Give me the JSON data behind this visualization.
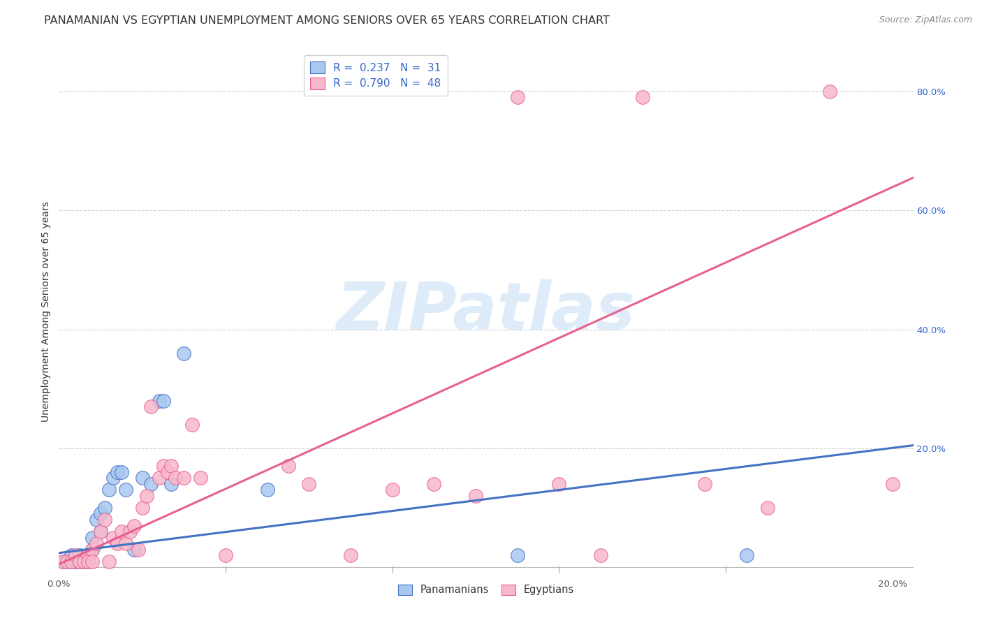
{
  "title": "PANAMANIAN VS EGYPTIAN UNEMPLOYMENT AMONG SENIORS OVER 65 YEARS CORRELATION CHART",
  "source": "Source: ZipAtlas.com",
  "ylabel": "Unemployment Among Seniors over 65 years",
  "xlim": [
    0.0,
    0.205
  ],
  "ylim": [
    -0.01,
    0.87
  ],
  "xtick_positions": [
    0.0,
    0.04,
    0.08,
    0.12,
    0.16,
    0.2
  ],
  "xtick_labels": [
    "0.0%",
    "",
    "",
    "",
    "",
    "20.0%"
  ],
  "ytick_positions_right": [
    0.0,
    0.2,
    0.4,
    0.6,
    0.8
  ],
  "ytick_labels_right": [
    "",
    "20.0%",
    "40.0%",
    "60.0%",
    "80.0%"
  ],
  "panamanian_color": "#a8c8f0",
  "egyptian_color": "#f8b8cc",
  "panamanian_edge_color": "#4472c4",
  "egyptian_edge_color": "#e86090",
  "panamanian_line_color": "#4472c4",
  "egyptian_line_color": "#e86090",
  "watermark_color": "#d0e4f8",
  "watermark_text": "ZIPatlas",
  "pan_x": [
    0.001,
    0.002,
    0.003,
    0.003,
    0.004,
    0.005,
    0.005,
    0.006,
    0.007,
    0.007,
    0.008,
    0.008,
    0.009,
    0.01,
    0.01,
    0.011,
    0.012,
    0.013,
    0.014,
    0.015,
    0.016,
    0.018,
    0.02,
    0.022,
    0.024,
    0.025,
    0.027,
    0.03,
    0.05,
    0.11,
    0.165
  ],
  "pan_y": [
    0.01,
    0.01,
    0.01,
    0.02,
    0.01,
    0.01,
    0.02,
    0.01,
    0.01,
    0.02,
    0.03,
    0.05,
    0.08,
    0.06,
    0.09,
    0.1,
    0.13,
    0.15,
    0.16,
    0.16,
    0.13,
    0.03,
    0.15,
    0.14,
    0.28,
    0.28,
    0.14,
    0.36,
    0.13,
    0.02,
    0.02
  ],
  "egy_x": [
    0.001,
    0.002,
    0.003,
    0.004,
    0.005,
    0.005,
    0.006,
    0.007,
    0.007,
    0.008,
    0.008,
    0.009,
    0.01,
    0.011,
    0.012,
    0.013,
    0.014,
    0.015,
    0.016,
    0.017,
    0.018,
    0.019,
    0.02,
    0.021,
    0.022,
    0.024,
    0.025,
    0.026,
    0.027,
    0.028,
    0.03,
    0.032,
    0.034,
    0.04,
    0.055,
    0.06,
    0.07,
    0.08,
    0.09,
    0.1,
    0.11,
    0.12,
    0.13,
    0.14,
    0.155,
    0.17,
    0.185,
    0.2
  ],
  "egy_y": [
    0.01,
    0.01,
    0.01,
    0.02,
    0.01,
    0.01,
    0.01,
    0.02,
    0.01,
    0.03,
    0.01,
    0.04,
    0.06,
    0.08,
    0.01,
    0.05,
    0.04,
    0.06,
    0.04,
    0.06,
    0.07,
    0.03,
    0.1,
    0.12,
    0.27,
    0.15,
    0.17,
    0.16,
    0.17,
    0.15,
    0.15,
    0.24,
    0.15,
    0.02,
    0.17,
    0.14,
    0.02,
    0.13,
    0.14,
    0.12,
    0.79,
    0.14,
    0.02,
    0.79,
    0.14,
    0.1,
    0.8,
    0.14
  ],
  "pan_trend_x": [
    0.0,
    0.205
  ],
  "pan_trend_y": [
    0.024,
    0.205
  ],
  "egy_trend_x": [
    0.0,
    0.205
  ],
  "egy_trend_y": [
    0.005,
    0.655
  ],
  "background_color": "#ffffff",
  "grid_color": "#cccccc",
  "title_fontsize": 11.5,
  "axis_fontsize": 10,
  "tick_fontsize": 9.5,
  "source_fontsize": 9
}
